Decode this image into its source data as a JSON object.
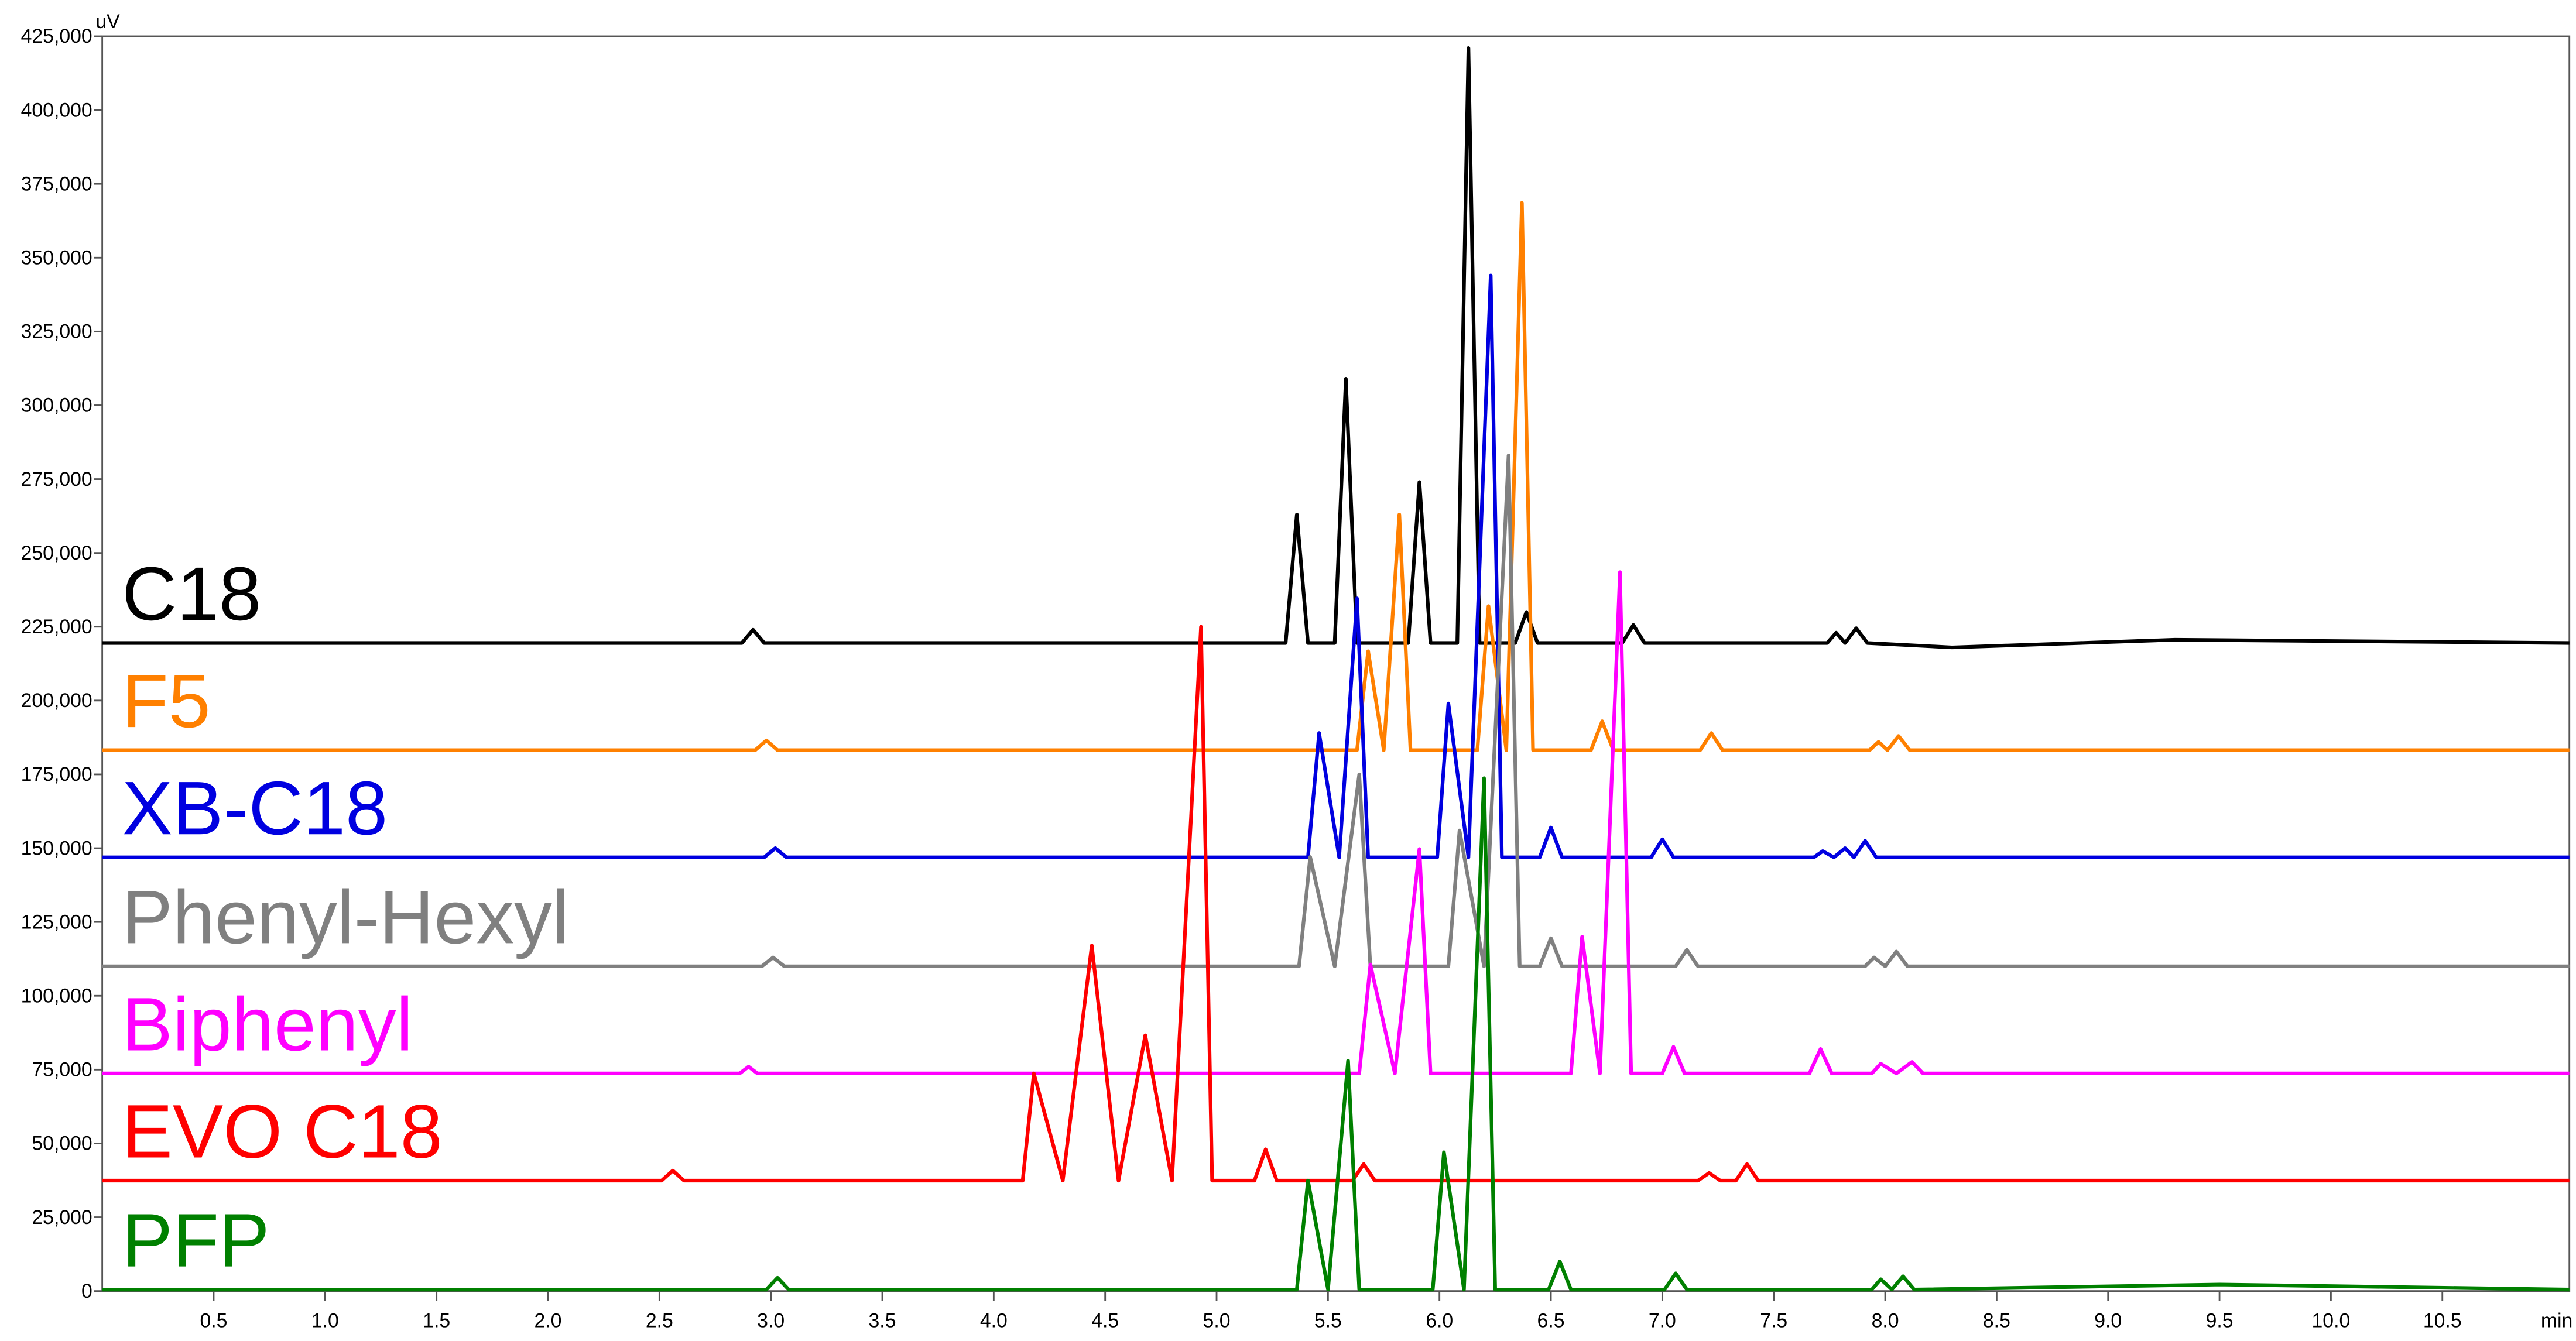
{
  "chart_data": {
    "type": "line",
    "y_unit": "uV",
    "x_unit": "min",
    "xlim": [
      0,
      11.07
    ],
    "ylim": [
      0,
      425000
    ],
    "xticks": [
      0.5,
      {
        "value": 1,
        "label": "1.0"
      },
      1.5,
      {
        "value": 2,
        "label": "2.0"
      },
      2.5,
      {
        "value": 3,
        "label": "3.0"
      },
      3.5,
      {
        "value": 4,
        "label": "4.0"
      },
      4.5,
      {
        "value": 5,
        "label": "5.0"
      },
      5.5,
      {
        "value": 6,
        "label": "6.0"
      },
      6.5,
      {
        "value": 7,
        "label": "7.0"
      },
      7.5,
      {
        "value": 8,
        "label": "8.0"
      },
      8.5,
      {
        "value": 9,
        "label": "9.0"
      },
      9.5,
      {
        "value": 10,
        "label": "10.0"
      },
      10.5
    ],
    "yticks": [
      0,
      {
        "value": 25000,
        "label": "25,000"
      },
      {
        "value": 50000,
        "label": "50,000"
      },
      {
        "value": 75000,
        "label": "75,000"
      },
      {
        "value": 100000,
        "label": "100,000"
      },
      {
        "value": 125000,
        "label": "125,000"
      },
      {
        "value": 150000,
        "label": "150,000"
      },
      {
        "value": 175000,
        "label": "175,000"
      },
      {
        "value": 200000,
        "label": "200,000"
      },
      {
        "value": 225000,
        "label": "225,000"
      },
      {
        "value": 250000,
        "label": "250,000"
      },
      {
        "value": 275000,
        "label": "275,000"
      },
      {
        "value": 300000,
        "label": "300,000"
      },
      {
        "value": 325000,
        "label": "325,000"
      },
      {
        "value": 350000,
        "label": "350,000"
      },
      {
        "value": 375000,
        "label": "375,000"
      },
      {
        "value": 400000,
        "label": "400,000"
      },
      {
        "value": 425000,
        "label": "425,000"
      }
    ],
    "series": [
      {
        "name": "C18",
        "color": "#000000",
        "x": [
          0,
          2.87,
          2.92,
          2.97,
          5.31,
          5.36,
          5.41,
          5.53,
          5.58,
          5.63,
          5.86,
          5.91,
          5.96,
          6.08,
          6.13,
          6.18,
          6.34,
          6.39,
          6.44,
          6.82,
          6.87,
          6.92,
          7.74,
          7.78,
          7.82,
          7.87,
          7.92,
          8.3,
          9.3,
          11.07
        ],
        "values": [
          219500,
          219500,
          224000,
          219500,
          219500,
          263000,
          219500,
          219500,
          309000,
          219500,
          219500,
          274000,
          219500,
          219500,
          421000,
          219500,
          219500,
          230000,
          219500,
          219500,
          225600,
          219500,
          219500,
          223000,
          219500,
          224500,
          219500,
          218000,
          220600,
          219500
        ]
      },
      {
        "name": "F5",
        "color": "#ff8000",
        "x": [
          0,
          2.93,
          2.98,
          3.03,
          5.63,
          5.68,
          5.75,
          5.82,
          5.87,
          6.17,
          6.22,
          6.3,
          6.37,
          6.42,
          6.68,
          6.73,
          6.78,
          7.17,
          7.22,
          7.27,
          7.93,
          7.97,
          8.01,
          8.06,
          8.11,
          11.07
        ],
        "values": [
          183200,
          183200,
          186500,
          183200,
          183200,
          216700,
          183200,
          263000,
          183200,
          183200,
          232000,
          183200,
          368600,
          183200,
          183200,
          193000,
          183200,
          183200,
          189000,
          183200,
          183200,
          186000,
          183200,
          188000,
          183200,
          183200
        ]
      },
      {
        "name": "XB-C18",
        "color": "#0000e0",
        "x": [
          0,
          2.97,
          3.02,
          3.07,
          5.41,
          5.46,
          5.55,
          5.63,
          5.68,
          5.99,
          6.04,
          6.13,
          6.23,
          6.28,
          6.45,
          6.5,
          6.55,
          6.95,
          7.0,
          7.05,
          7.68,
          7.72,
          7.77,
          7.82,
          7.86,
          7.91,
          7.96,
          11.07
        ],
        "values": [
          146900,
          146900,
          150000,
          146900,
          146900,
          189000,
          146900,
          234600,
          146900,
          146900,
          199000,
          146900,
          344000,
          146900,
          146900,
          157000,
          146900,
          146900,
          153000,
          146900,
          146900,
          149000,
          146900,
          150000,
          146900,
          152500,
          146900,
          146900
        ]
      },
      {
        "name": "Phenyl-Hexyl",
        "color": "#808080",
        "x": [
          0,
          2.96,
          3.01,
          3.06,
          5.37,
          5.42,
          5.53,
          5.64,
          5.69,
          6.04,
          6.09,
          6.2,
          6.31,
          6.36,
          6.45,
          6.5,
          6.55,
          7.06,
          7.11,
          7.16,
          7.91,
          7.95,
          8.0,
          8.05,
          8.1,
          11.07
        ],
        "values": [
          110000,
          110000,
          113000,
          110000,
          110000,
          147000,
          110000,
          175000,
          110000,
          110000,
          156000,
          110000,
          283000,
          110000,
          110000,
          119500,
          110000,
          110000,
          115600,
          110000,
          110000,
          113000,
          110000,
          115000,
          110000,
          110000
        ]
      },
      {
        "name": "Biphenyl",
        "color": "#ff00ff",
        "x": [
          0,
          2.86,
          2.9,
          2.94,
          5.64,
          5.69,
          5.8,
          5.91,
          5.96,
          6.59,
          6.64,
          6.72,
          6.81,
          6.86,
          7.0,
          7.05,
          7.1,
          7.66,
          7.71,
          7.76,
          7.94,
          7.98,
          8.05,
          8.12,
          8.17,
          11.07
        ],
        "values": [
          73700,
          73700,
          76000,
          73700,
          73700,
          110600,
          73700,
          149700,
          73700,
          73700,
          120000,
          73700,
          243500,
          73700,
          73700,
          82700,
          73700,
          73700,
          82000,
          73700,
          73700,
          77000,
          73700,
          77600,
          73700,
          73700
        ]
      },
      {
        "name": "EVO C18",
        "color": "#ff0000",
        "x": [
          0,
          2.51,
          2.56,
          2.61,
          4.13,
          4.18,
          4.31,
          4.44,
          4.56,
          4.68,
          4.8,
          4.93,
          4.98,
          5.17,
          5.22,
          5.27,
          5.61,
          5.66,
          5.71,
          7.16,
          7.21,
          7.26,
          7.33,
          7.38,
          7.43,
          11.07
        ],
        "values": [
          37400,
          37400,
          40800,
          37400,
          37400,
          73700,
          37400,
          117000,
          37400,
          86600,
          37400,
          225000,
          37400,
          37400,
          48000,
          37400,
          37400,
          43000,
          37400,
          37400,
          40000,
          37400,
          37400,
          43000,
          37400,
          37400
        ]
      },
      {
        "name": "PFP",
        "color": "#008000",
        "x": [
          0,
          2.98,
          3.03,
          3.08,
          5.36,
          5.41,
          5.5,
          5.59,
          5.64,
          5.97,
          6.02,
          6.11,
          6.2,
          6.25,
          6.49,
          6.54,
          6.59,
          7.01,
          7.06,
          7.11,
          7.94,
          7.98,
          8.03,
          8.08,
          8.13,
          9.5,
          11.07
        ],
        "values": [
          500,
          500,
          4500,
          500,
          500,
          37400,
          500,
          78000,
          500,
          500,
          47000,
          500,
          173700,
          500,
          500,
          10000,
          500,
          500,
          6000,
          500,
          500,
          4000,
          500,
          5000,
          500,
          2200,
          500
        ]
      }
    ]
  }
}
